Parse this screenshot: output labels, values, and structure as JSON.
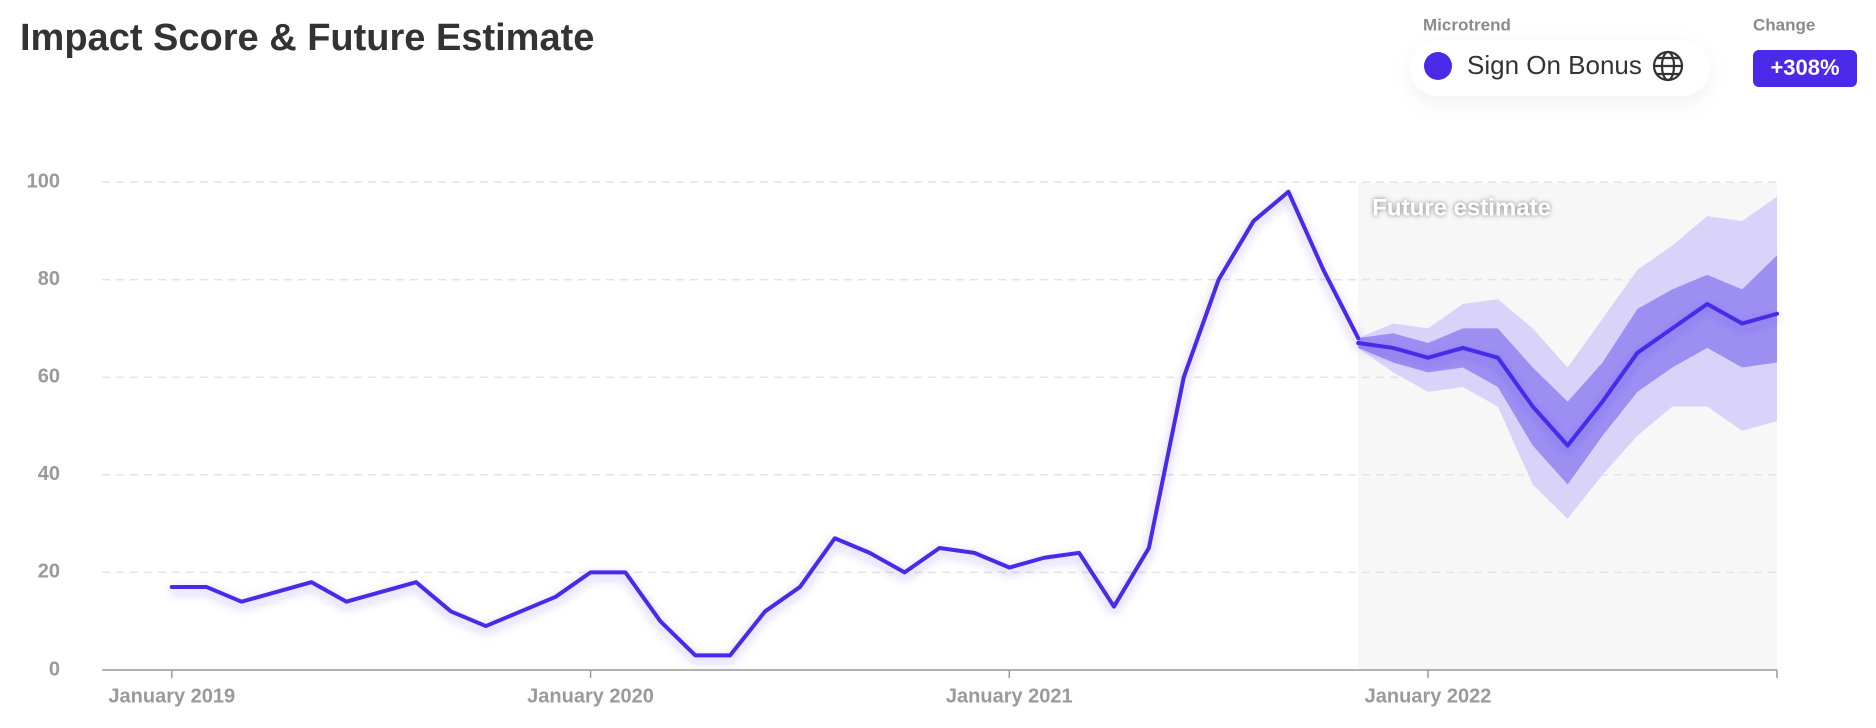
{
  "chart_data": {
    "type": "line",
    "title": "Impact Score & Future Estimate",
    "legend_title": "Microtrend",
    "change_title": "Change",
    "change": {
      "value": 308,
      "label": "+308%"
    },
    "annotation": "Future estimate",
    "future_start": "2021-11",
    "x": [
      "2019-01",
      "2019-02",
      "2019-03",
      "2019-04",
      "2019-05",
      "2019-06",
      "2019-07",
      "2019-08",
      "2019-09",
      "2019-10",
      "2019-11",
      "2019-12",
      "2020-01",
      "2020-02",
      "2020-03",
      "2020-04",
      "2020-05",
      "2020-06",
      "2020-07",
      "2020-08",
      "2020-09",
      "2020-10",
      "2020-11",
      "2020-12",
      "2021-01",
      "2021-02",
      "2021-03",
      "2021-04",
      "2021-05",
      "2021-06",
      "2021-07",
      "2021-08",
      "2021-09",
      "2021-10",
      "2021-11",
      "2021-12",
      "2022-01",
      "2022-02",
      "2022-03",
      "2022-04",
      "2022-05",
      "2022-06",
      "2022-07",
      "2022-08",
      "2022-09",
      "2022-10",
      "2022-11"
    ],
    "series": [
      {
        "name": "Sign On Bonus",
        "color": "#4a2ae8",
        "values": [
          17,
          17,
          14,
          16,
          18,
          14,
          16,
          18,
          12,
          9,
          12,
          15,
          20,
          20,
          10,
          3,
          3,
          12,
          17,
          27,
          24,
          20,
          25,
          24,
          21,
          23,
          24,
          13,
          25,
          60,
          80,
          92,
          98,
          82,
          68,
          null,
          null,
          null,
          null,
          null,
          null,
          null,
          null,
          null,
          null,
          null,
          null
        ],
        "forecast": [
          null,
          null,
          null,
          null,
          null,
          null,
          null,
          null,
          null,
          null,
          null,
          null,
          null,
          null,
          null,
          null,
          null,
          null,
          null,
          null,
          null,
          null,
          null,
          null,
          null,
          null,
          null,
          null,
          null,
          null,
          null,
          null,
          null,
          null,
          67,
          66,
          64,
          66,
          64,
          54,
          46,
          55,
          65,
          70,
          75,
          71,
          73
        ],
        "inner_upper": [
          null,
          null,
          null,
          null,
          null,
          null,
          null,
          null,
          null,
          null,
          null,
          null,
          null,
          null,
          null,
          null,
          null,
          null,
          null,
          null,
          null,
          null,
          null,
          null,
          null,
          null,
          null,
          null,
          null,
          null,
          null,
          null,
          null,
          null,
          68,
          69,
          67,
          70,
          70,
          62,
          55,
          63,
          74,
          78,
          81,
          78,
          85
        ],
        "inner_lower": [
          null,
          null,
          null,
          null,
          null,
          null,
          null,
          null,
          null,
          null,
          null,
          null,
          null,
          null,
          null,
          null,
          null,
          null,
          null,
          null,
          null,
          null,
          null,
          null,
          null,
          null,
          null,
          null,
          null,
          null,
          null,
          null,
          null,
          null,
          66,
          63,
          61,
          62,
          58,
          46,
          38,
          48,
          57,
          62,
          66,
          62,
          63
        ],
        "outer_upper": [
          null,
          null,
          null,
          null,
          null,
          null,
          null,
          null,
          null,
          null,
          null,
          null,
          null,
          null,
          null,
          null,
          null,
          null,
          null,
          null,
          null,
          null,
          null,
          null,
          null,
          null,
          null,
          null,
          null,
          null,
          null,
          null,
          null,
          null,
          68,
          71,
          70,
          75,
          76,
          70,
          62,
          72,
          82,
          87,
          93,
          92,
          97
        ],
        "outer_lower": [
          null,
          null,
          null,
          null,
          null,
          null,
          null,
          null,
          null,
          null,
          null,
          null,
          null,
          null,
          null,
          null,
          null,
          null,
          null,
          null,
          null,
          null,
          null,
          null,
          null,
          null,
          null,
          null,
          null,
          null,
          null,
          null,
          null,
          null,
          66,
          61,
          57,
          58,
          54,
          38,
          31,
          40,
          48,
          54,
          54,
          49,
          51
        ],
        "inner_color": "#9d8ff2",
        "outer_color": "#d9d3fa"
      }
    ],
    "xlim": [
      "2018-11",
      "2022-11"
    ],
    "xticks": [
      {
        "value": "2019-01",
        "label": "January 2019"
      },
      {
        "value": "2020-01",
        "label": "January 2020"
      },
      {
        "value": "2021-01",
        "label": "January 2021"
      },
      {
        "value": "2022-01",
        "label": "January 2022"
      }
    ],
    "ylim": [
      0,
      100
    ],
    "yticks": [
      0,
      20,
      40,
      60,
      80,
      100
    ],
    "grid": true
  }
}
